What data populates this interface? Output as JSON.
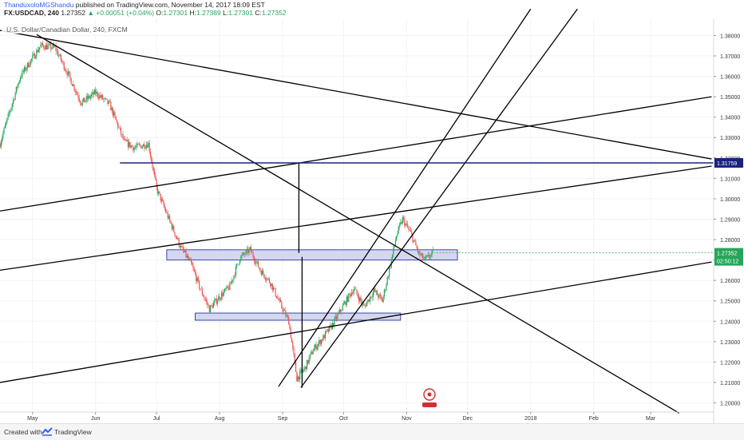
{
  "header": {
    "author": "ThanduxoloMGShandu",
    "published": "published on TradingView.com, November 14, 2017 18:09 EST",
    "symbol": "FX:USDCAD, 240",
    "last": "1.27352",
    "change_arrow": "▲",
    "change": "+0.00051 (+0.04%)",
    "o_label": "O:",
    "o_value": "1.27301",
    "h_label": "H:",
    "h_value": "1.27389",
    "l_label": "L:",
    "l_value": "1.27301",
    "c_label": "C:",
    "c_value": "1.27352"
  },
  "chart_title": "U.S. Dollar/Canadian Dollar, 240, FXCM",
  "footer": {
    "created": "Created with",
    "brand": "TradingView"
  },
  "colors": {
    "candle_up": "#26a65b",
    "candle_down": "#ef5350",
    "trendline": "#000000",
    "level": "#1a237e",
    "zone_fill": "#c5cae9",
    "zone_stroke": "#3949ab",
    "price_tag": "#26a65b"
  },
  "chart_data": {
    "type": "candlestick",
    "y_ticks": [
      "1.38000",
      "1.37000",
      "1.36000",
      "1.35000",
      "1.34000",
      "1.33000",
      "1.32000",
      "1.31000",
      "1.30000",
      "1.29000",
      "1.28000",
      "1.27000",
      "1.26000",
      "1.25000",
      "1.24000",
      "1.23000",
      "1.22000",
      "1.21000",
      "1.20000"
    ],
    "ylim": [
      1.1955,
      1.388
    ],
    "x_ticks": [
      "May",
      "Jun",
      "Jul",
      "Aug",
      "Sep",
      "Oct",
      "Nov",
      "Dec",
      "2018",
      "Feb",
      "Mar"
    ],
    "price_path": [
      [
        "2017-04-15",
        1.327
      ],
      [
        "2017-04-25",
        1.36
      ],
      [
        "2017-05-05",
        1.375
      ],
      [
        "2017-05-12",
        1.374
      ],
      [
        "2017-05-18",
        1.362
      ],
      [
        "2017-05-25",
        1.347
      ],
      [
        "2017-06-01",
        1.352
      ],
      [
        "2017-06-08",
        1.346
      ],
      [
        "2017-06-15",
        1.328
      ],
      [
        "2017-06-20",
        1.325
      ],
      [
        "2017-06-27",
        1.327
      ],
      [
        "2017-07-01",
        1.305
      ],
      [
        "2017-07-07",
        1.29
      ],
      [
        "2017-07-13",
        1.276
      ],
      [
        "2017-07-18",
        1.268
      ],
      [
        "2017-07-22",
        1.257
      ],
      [
        "2017-07-27",
        1.246
      ],
      [
        "2017-08-01",
        1.252
      ],
      [
        "2017-08-06",
        1.257
      ],
      [
        "2017-08-11",
        1.271
      ],
      [
        "2017-08-16",
        1.275
      ],
      [
        "2017-08-21",
        1.265
      ],
      [
        "2017-08-26",
        1.259
      ],
      [
        "2017-08-31",
        1.248
      ],
      [
        "2017-09-04",
        1.24
      ],
      [
        "2017-09-08",
        1.212
      ],
      [
        "2017-09-12",
        1.217
      ],
      [
        "2017-09-16",
        1.226
      ],
      [
        "2017-09-21",
        1.232
      ],
      [
        "2017-09-26",
        1.239
      ],
      [
        "2017-10-01",
        1.248
      ],
      [
        "2017-10-06",
        1.256
      ],
      [
        "2017-10-11",
        1.247
      ],
      [
        "2017-10-16",
        1.255
      ],
      [
        "2017-10-20",
        1.25
      ],
      [
        "2017-10-23",
        1.263
      ],
      [
        "2017-10-27",
        1.282
      ],
      [
        "2017-10-30",
        1.29
      ],
      [
        "2017-11-03",
        1.283
      ],
      [
        "2017-11-07",
        1.273
      ],
      [
        "2017-11-10",
        1.27
      ],
      [
        "2017-11-14",
        1.27352
      ]
    ],
    "horizontal_level": {
      "value": 1.31759,
      "label": "1.31759"
    },
    "last_price_label": "1.27352",
    "countdown_label": "02:50:12",
    "zones": [
      {
        "from": "2017-07-06",
        "to": "2017-11-26",
        "low": 1.27,
        "high": 1.275
      },
      {
        "from": "2017-07-20",
        "to": "2017-10-29",
        "low": 1.2405,
        "high": 1.244
      }
    ],
    "measure_line": {
      "date": "2017-09-09",
      "top": 1.31759,
      "bottom": 1.2075,
      "gap_low": 1.2715,
      "gap_high": 1.2735
    },
    "trendlines": [
      {
        "x1": "2017-04-15",
        "y1": 1.3825,
        "x2": "2018-03-31",
        "y2": 1.3195
      },
      {
        "x1": "2017-05-03",
        "y1": 1.3805,
        "x2": "2018-03-15",
        "y2": 1.195
      },
      {
        "x1": "2017-04-15",
        "y1": 1.294,
        "x2": "2018-03-31",
        "y2": 1.35
      },
      {
        "x1": "2017-04-15",
        "y1": 1.265,
        "x2": "2018-03-31",
        "y2": 1.316
      },
      {
        "x1": "2017-04-15",
        "y1": 1.21,
        "x2": "2018-03-31",
        "y2": 1.269
      },
      {
        "x1": "2017-08-30",
        "y1": 1.208,
        "x2": "2018-01-01",
        "y2": 1.393
      },
      {
        "x1": "2017-09-10",
        "y1": 1.2075,
        "x2": "2018-01-24",
        "y2": 1.393
      }
    ]
  }
}
